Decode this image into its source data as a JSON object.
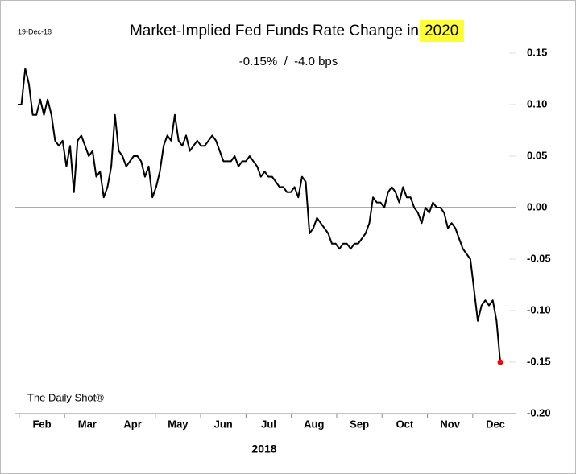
{
  "chart_data": {
    "type": "line",
    "date_stamp": "19-Dec-18",
    "title": "Market-Implied Fed Funds Rate Change in",
    "title_highlight": "2020",
    "subtitle": "-0.15%  /  -4.0 bps",
    "source": "The Daily Shot®",
    "xlabel": "2018",
    "months": [
      "Feb",
      "Mar",
      "Apr",
      "May",
      "Jun",
      "Jul",
      "Aug",
      "Sep",
      "Oct",
      "Nov",
      "Dec"
    ],
    "color": "#000000",
    "end_marker_color": "#ff0000",
    "zero_line": 0,
    "values": [
      0.1,
      0.1,
      0.135,
      0.12,
      0.09,
      0.09,
      0.105,
      0.09,
      0.105,
      0.09,
      0.065,
      0.06,
      0.065,
      0.04,
      0.06,
      0.015,
      0.065,
      0.07,
      0.06,
      0.05,
      0.055,
      0.03,
      0.035,
      0.01,
      0.02,
      0.04,
      0.09,
      0.055,
      0.05,
      0.04,
      0.045,
      0.05,
      0.05,
      0.045,
      0.03,
      0.04,
      0.01,
      0.02,
      0.035,
      0.06,
      0.07,
      0.065,
      0.09,
      0.065,
      0.06,
      0.07,
      0.055,
      0.06,
      0.065,
      0.06,
      0.06,
      0.065,
      0.07,
      0.065,
      0.055,
      0.045,
      0.045,
      0.045,
      0.05,
      0.04,
      0.045,
      0.045,
      0.05,
      0.045,
      0.04,
      0.03,
      0.035,
      0.03,
      0.03,
      0.025,
      0.02,
      0.02,
      0.015,
      0.015,
      0.02,
      0.01,
      0.03,
      0.025,
      -0.025,
      -0.02,
      -0.01,
      -0.015,
      -0.02,
      -0.025,
      -0.035,
      -0.035,
      -0.04,
      -0.035,
      -0.035,
      -0.04,
      -0.035,
      -0.035,
      -0.03,
      -0.025,
      -0.015,
      0.01,
      0.005,
      0.005,
      0.0,
      0.015,
      0.02,
      0.015,
      0.005,
      0.02,
      0.01,
      0.01,
      0.0,
      -0.005,
      -0.015,
      0.0,
      -0.005,
      0.005,
      0.0,
      0.0,
      -0.005,
      -0.02,
      -0.015,
      -0.02,
      -0.03,
      -0.04,
      -0.045,
      -0.05,
      -0.08,
      -0.11,
      -0.095,
      -0.09,
      -0.095,
      -0.09,
      -0.11,
      -0.15
    ],
    "ylim": [
      -0.2,
      0.15
    ],
    "yticks": [
      0.15,
      {
        "value": 0.1,
        "label": "0.10"
      },
      0.05,
      {
        "value": 0,
        "label": "0.00"
      },
      -0.05,
      {
        "value": -0.1,
        "label": "-0.10"
      },
      -0.15,
      {
        "value": -0.2,
        "label": "-0.20"
      }
    ]
  }
}
